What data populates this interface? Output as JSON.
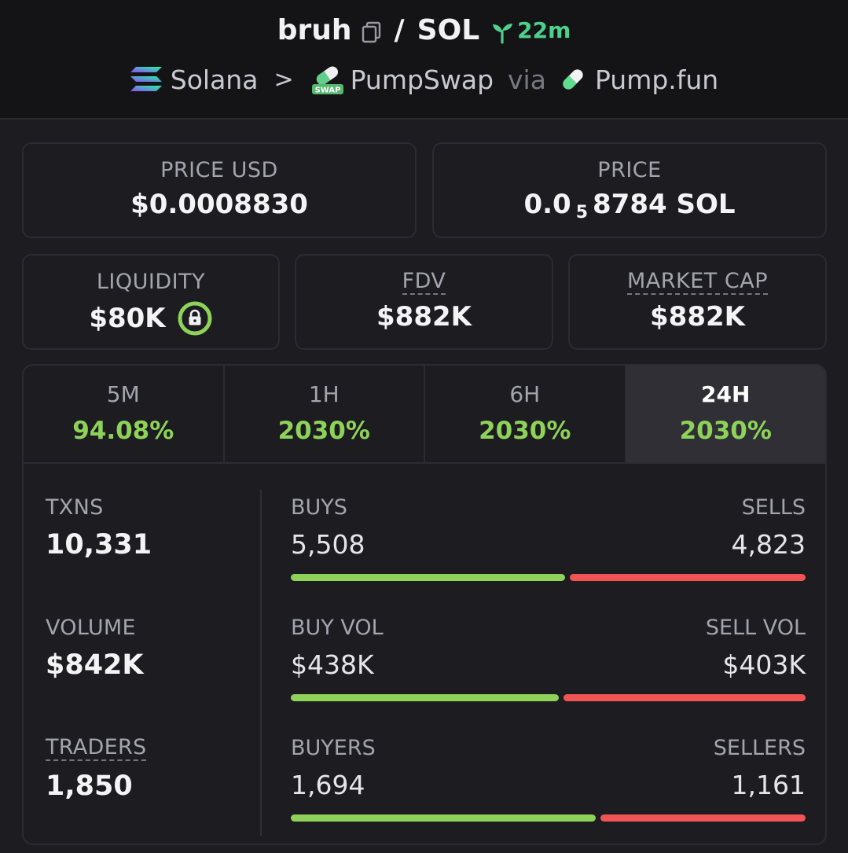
{
  "header": {
    "token": "bruh",
    "separator": "/",
    "quote": "SOL",
    "age": "22m",
    "chain": "Solana",
    "chevron": ">",
    "dex": "PumpSwap",
    "via": "via",
    "launchpad": "Pump.fun",
    "swap_badge": "SWAP"
  },
  "prices": {
    "usd_label": "PRICE USD",
    "usd_value": "$0.0008830",
    "native_label": "PRICE",
    "native_prefix": "0.0",
    "native_zeros": "5",
    "native_rest": "8784 SOL"
  },
  "metrics": {
    "liquidity_label": "LIQUIDITY",
    "liquidity_value": "$80K",
    "fdv_label": "FDV",
    "fdv_value": "$882K",
    "mcap_label": "MARKET CAP",
    "mcap_value": "$882K"
  },
  "timeframes": [
    {
      "label": "5M",
      "change": "94.08%"
    },
    {
      "label": "1H",
      "change": "2030%"
    },
    {
      "label": "6H",
      "change": "2030%"
    },
    {
      "label": "24H",
      "change": "2030%",
      "active": true
    }
  ],
  "stats": {
    "txns_label": "TXNS",
    "txns_value": "10,331",
    "volume_label": "VOLUME",
    "volume_value": "$842K",
    "traders_label": "TRADERS",
    "traders_value": "1,850"
  },
  "breakdown": {
    "buys_label": "BUYS",
    "buys_value": "5,508",
    "buys_fraction": 0.533,
    "sells_label": "SELLS",
    "sells_value": "4,823",
    "buyvol_label": "BUY VOL",
    "buyvol_value": "$438K",
    "buyvol_fraction": 0.521,
    "sellvol_label": "SELL VOL",
    "sellvol_value": "$403K",
    "buyers_label": "BUYERS",
    "buyers_value": "1,694",
    "buyers_fraction": 0.593,
    "sellers_label": "SELLERS",
    "sellers_value": "1,161"
  },
  "colors": {
    "positive": "#8ed25a",
    "negative": "#f05454",
    "age_green": "#4cd18a",
    "background": "#1c1c21"
  },
  "icons": [
    "copy-icon",
    "seedling-icon",
    "solana-logo-icon",
    "chevron-right-icon",
    "pumpswap-icon",
    "pill-icon",
    "lock-icon"
  ]
}
